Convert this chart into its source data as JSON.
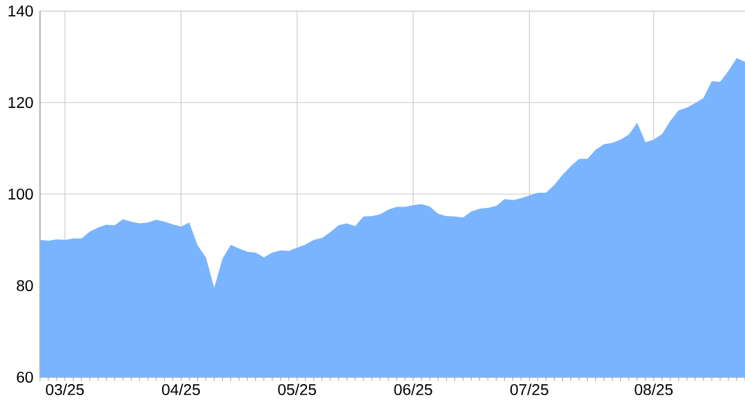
{
  "chart_data": {
    "type": "area",
    "color": "#7ab4ff",
    "grid": true,
    "categories": [
      null,
      null,
      null,
      "03/25",
      null,
      null,
      null,
      null,
      null,
      null,
      null,
      null,
      null,
      null,
      null,
      null,
      null,
      "04/25",
      null,
      null,
      null,
      null,
      null,
      null,
      null,
      null,
      null,
      null,
      null,
      null,
      null,
      "05/25",
      null,
      null,
      null,
      null,
      null,
      null,
      null,
      null,
      null,
      null,
      null,
      null,
      null,
      "06/25",
      null,
      null,
      null,
      null,
      null,
      null,
      null,
      null,
      null,
      null,
      null,
      null,
      null,
      "07/25",
      null,
      null,
      null,
      null,
      null,
      null,
      null,
      null,
      null,
      null,
      null,
      null,
      null,
      null,
      "08/25",
      null,
      null,
      null,
      null,
      null,
      null,
      null,
      null,
      null,
      null,
      null
    ],
    "values": [
      90.0,
      89.8,
      90.1,
      90.0,
      90.3,
      90.3,
      91.8,
      92.7,
      93.3,
      93.2,
      94.5,
      94.0,
      93.6,
      93.8,
      94.4,
      94.0,
      93.4,
      92.9,
      93.8,
      88.8,
      86.2,
      79.5,
      85.9,
      88.9,
      88.1,
      87.4,
      87.2,
      86.2,
      87.2,
      87.7,
      87.6,
      88.3,
      89.0,
      90.0,
      90.4,
      91.7,
      93.2,
      93.6,
      93.0,
      95.1,
      95.2,
      95.6,
      96.6,
      97.2,
      97.2,
      97.6,
      97.8,
      97.3,
      95.7,
      95.2,
      95.1,
      94.9,
      96.2,
      96.8,
      97.0,
      97.4,
      98.9,
      98.7,
      99.1,
      99.7,
      100.3,
      100.3,
      102.0,
      104.2,
      106.1,
      107.7,
      107.7,
      109.7,
      110.9,
      111.2,
      111.9,
      113.0,
      115.6,
      111.3,
      111.9,
      113.1,
      116.0,
      118.3,
      118.9,
      119.9,
      121.0,
      124.7,
      124.5,
      126.9,
      129.7,
      128.9
    ],
    "ylim": [
      60,
      140
    ],
    "yticks": [
      60,
      80,
      100,
      120,
      140
    ]
  }
}
